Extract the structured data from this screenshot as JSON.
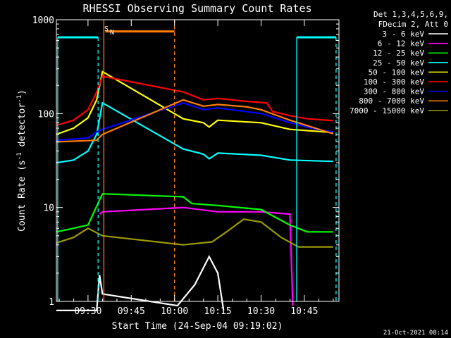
{
  "chart_data": {
    "type": "line",
    "title": "RHESSI Observing Summary Count Rates",
    "xlabel": "Start Time (24-Sep-04 09:19:02)",
    "ylabel_parts": [
      "Count Rate (s",
      "-1",
      " detector",
      "-1",
      ")"
    ],
    "yscale": "log",
    "ylim": [
      1,
      1000
    ],
    "xlim": [
      "09:19:02",
      "10:57:00"
    ],
    "x_ticks": [
      "09:30",
      "09:45",
      "10:00",
      "10:15",
      "10:30",
      "10:45"
    ],
    "y_ticks": [
      "1",
      "10",
      "100",
      "1000"
    ],
    "legend_header": [
      "Det 1,3,4,5,6,9,",
      "FDecim 2, Att 0"
    ],
    "legend_position": "right",
    "footer_date": "21-Oct-2021 08:14",
    "flags": [
      "S",
      "N"
    ],
    "series": [
      {
        "name": "3 - 6 keV",
        "color": "#ffffff",
        "points": [
          [
            "09:19",
            0.8
          ],
          [
            "09:33",
            0.8
          ],
          [
            "09:34",
            1.9
          ],
          [
            "09:35",
            1.2
          ],
          [
            "10:01",
            0.9
          ],
          [
            "10:07",
            1.5
          ],
          [
            "10:12",
            3.0
          ],
          [
            "10:15",
            2.0
          ],
          [
            "10:17",
            0.8
          ]
        ]
      },
      {
        "name": "6 - 12 keV",
        "color": "#ff00ff",
        "points": [
          [
            "09:34",
            8.5
          ],
          [
            "09:35",
            9.0
          ],
          [
            "10:03",
            10.0
          ],
          [
            "10:15",
            9.0
          ],
          [
            "10:30",
            9.0
          ],
          [
            "10:40",
            8.5
          ],
          [
            "10:41",
            0.9
          ]
        ]
      },
      {
        "name": "12 - 25 keV",
        "color": "#00ff00",
        "points": [
          [
            "09:19",
            5.5
          ],
          [
            "09:25",
            6.0
          ],
          [
            "09:30",
            6.5
          ],
          [
            "09:34",
            12.0
          ],
          [
            "09:35",
            14.0
          ],
          [
            "10:03",
            13.0
          ],
          [
            "10:06",
            11.0
          ],
          [
            "10:15",
            10.5
          ],
          [
            "10:30",
            9.5
          ],
          [
            "10:40",
            6.5
          ],
          [
            "10:46",
            5.5
          ],
          [
            "10:55",
            5.5
          ]
        ]
      },
      {
        "name": "25 - 50 keV",
        "color": "#00ffff",
        "points": [
          [
            "09:19",
            30
          ],
          [
            "09:25",
            32
          ],
          [
            "09:30",
            40
          ],
          [
            "09:33",
            60
          ],
          [
            "09:35",
            130
          ],
          [
            "10:03",
            42
          ],
          [
            "10:10",
            37
          ],
          [
            "10:12",
            33
          ],
          [
            "10:15",
            38
          ],
          [
            "10:30",
            36
          ],
          [
            "10:40",
            32
          ],
          [
            "10:55",
            31
          ]
        ]
      },
      {
        "name": "50 - 100 keV",
        "color": "#ffff00",
        "points": [
          [
            "09:19",
            60
          ],
          [
            "09:25",
            70
          ],
          [
            "09:30",
            90
          ],
          [
            "09:33",
            140
          ],
          [
            "09:35",
            280
          ],
          [
            "10:03",
            88
          ],
          [
            "10:10",
            80
          ],
          [
            "10:12",
            72
          ],
          [
            "10:15",
            85
          ],
          [
            "10:30",
            80
          ],
          [
            "10:40",
            68
          ],
          [
            "10:55",
            63
          ]
        ]
      },
      {
        "name": "100 - 300 keV",
        "color": "#ff0000",
        "points": [
          [
            "09:19",
            75
          ],
          [
            "09:25",
            85
          ],
          [
            "09:30",
            110
          ],
          [
            "09:33",
            170
          ],
          [
            "09:35",
            250
          ],
          [
            "10:03",
            170
          ],
          [
            "10:10",
            140
          ],
          [
            "10:15",
            145
          ],
          [
            "10:25",
            135
          ],
          [
            "10:32",
            130
          ],
          [
            "10:34",
            105
          ],
          [
            "10:40",
            95
          ],
          [
            "10:46",
            88
          ],
          [
            "10:55",
            84
          ]
        ]
      },
      {
        "name": "300 - 800 keV",
        "color": "#0000ff",
        "points": [
          [
            "09:19",
            52
          ],
          [
            "09:30",
            55
          ],
          [
            "09:33",
            64
          ],
          [
            "09:35",
            68
          ],
          [
            "10:03",
            130
          ],
          [
            "10:10",
            110
          ],
          [
            "10:15",
            115
          ],
          [
            "10:30",
            100
          ],
          [
            "10:40",
            80
          ],
          [
            "10:50",
            67
          ],
          [
            "10:55",
            64
          ]
        ]
      },
      {
        "name": "800 - 7000 keV",
        "color": "#ff7f00",
        "points": [
          [
            "09:19",
            50
          ],
          [
            "09:33",
            52
          ],
          [
            "09:35",
            60
          ],
          [
            "10:03",
            140
          ],
          [
            "10:10",
            120
          ],
          [
            "10:15",
            125
          ],
          [
            "10:25",
            118
          ],
          [
            "10:30",
            110
          ],
          [
            "10:40",
            85
          ],
          [
            "10:55",
            61
          ]
        ]
      },
      {
        "name": "7000 - 15000 keV",
        "color": "#9a9a00",
        "points": [
          [
            "09:19",
            4.2
          ],
          [
            "09:25",
            4.8
          ],
          [
            "09:30",
            6.0
          ],
          [
            "09:35",
            5.0
          ],
          [
            "10:03",
            4.0
          ],
          [
            "10:13",
            4.3
          ],
          [
            "10:18",
            5.5
          ],
          [
            "10:24",
            7.5
          ],
          [
            "10:30",
            7.0
          ],
          [
            "10:37",
            4.8
          ],
          [
            "10:43",
            3.8
          ],
          [
            "10:55",
            3.8
          ]
        ]
      }
    ],
    "markers": [
      {
        "time": "09:19:30",
        "value": 650,
        "color": "#00ffff",
        "style": "solid"
      },
      {
        "time": "09:33:30",
        "value": 650,
        "color": "#00ffff",
        "style": "dashed"
      },
      {
        "time": "09:35:30",
        "value": 1000,
        "color": "#ff7f00",
        "style": "solid"
      },
      {
        "time": "10:00:00",
        "value": 1000,
        "color": "#ff7f00",
        "style": "dashed"
      },
      {
        "time": "10:42:20",
        "value": 650,
        "color": "#00ffff",
        "style": "solid"
      },
      {
        "time": "10:56:00",
        "value": 650,
        "color": "#00ffff",
        "style": "dashed"
      }
    ],
    "bars": [
      {
        "start": "09:19:30",
        "end": "09:33:30",
        "value": 650,
        "color": "#00ffff"
      },
      {
        "start": "09:36:00",
        "end": "10:00:00",
        "value": 750,
        "color": "#ff7f00"
      },
      {
        "start": "10:42:20",
        "end": "10:56:00",
        "value": 650,
        "color": "#00ffff"
      }
    ]
  }
}
